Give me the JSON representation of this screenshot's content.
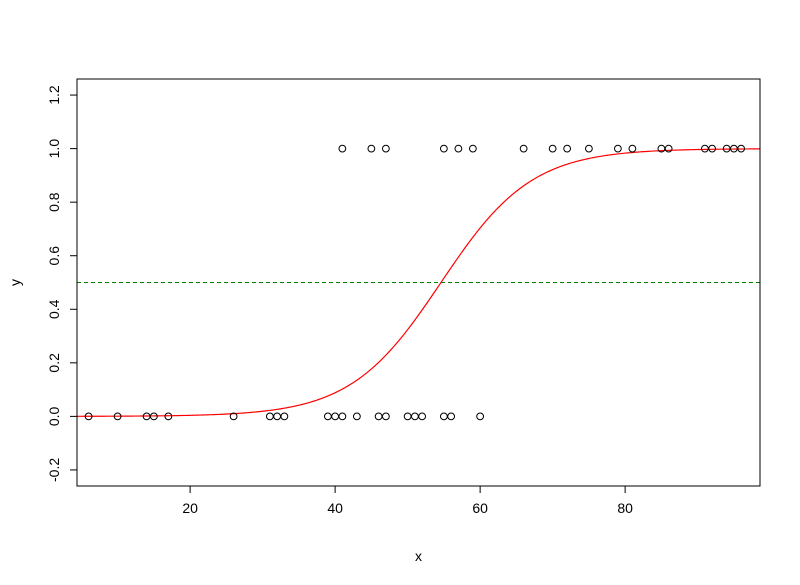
{
  "chart_data": {
    "type": "scatter",
    "title": "",
    "xlabel": "x",
    "ylabel": "y",
    "xlim": [
      4.4,
      98.6
    ],
    "ylim": [
      -0.26,
      1.26
    ],
    "xticks": [
      20,
      40,
      60,
      80
    ],
    "yticks": [
      -0.2,
      0.0,
      0.2,
      0.4,
      0.6,
      0.8,
      1.0,
      1.2
    ],
    "ytick_labels": [
      "-0.2",
      "0.0",
      "0.2",
      "0.4",
      "0.6",
      "0.8",
      "1.0",
      "1.2"
    ],
    "grid": false,
    "legend": "none",
    "points": {
      "marker": "open-circle",
      "color": "#000000",
      "x": [
        6,
        10,
        14,
        15,
        17,
        26,
        31,
        32,
        33,
        39,
        40,
        41,
        43,
        46,
        47,
        50,
        51,
        52,
        55,
        56,
        60,
        41,
        45,
        47,
        55,
        57,
        59,
        66,
        70,
        72,
        75,
        79,
        81,
        85,
        86,
        91,
        92,
        94,
        95,
        96
      ],
      "y": [
        0,
        0,
        0,
        0,
        0,
        0,
        0,
        0,
        0,
        0,
        0,
        0,
        0,
        0,
        0,
        0,
        0,
        0,
        0,
        0,
        0,
        1,
        1,
        1,
        1,
        1,
        1,
        1,
        1,
        1,
        1,
        1,
        1,
        1,
        1,
        1,
        1,
        1,
        1,
        1
      ]
    },
    "curve": {
      "kind": "logistic",
      "color": "#ff0000",
      "midpoint": 54.6,
      "slope": 0.16,
      "x_range": [
        4.4,
        98.6
      ]
    },
    "hline": {
      "y": 0.5,
      "color": "#008000",
      "dash": true
    }
  }
}
